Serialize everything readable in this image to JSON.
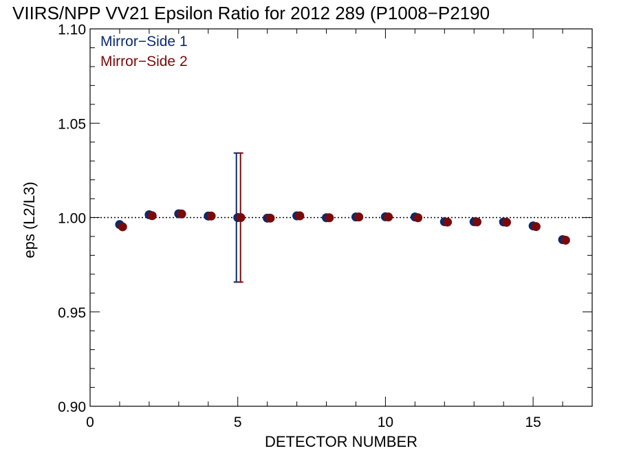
{
  "chart_data": {
    "type": "scatter",
    "title": "VIIRS/NPP VV21 Epsilon Ratio for 2012 289 (P1008−P2190",
    "xlabel": "DETECTOR NUMBER",
    "ylabel": "eps (L2/L3)",
    "xlim": [
      0,
      17
    ],
    "ylim": [
      0.9,
      1.1
    ],
    "x_ticks": [
      0,
      5,
      10,
      15
    ],
    "x_tick_labels": [
      "0",
      "5",
      "10",
      "15"
    ],
    "y_ticks": [
      0.9,
      0.95,
      1.0,
      1.05,
      1.1
    ],
    "y_tick_labels": [
      "0.90",
      "0.95",
      "1.00",
      "1.05",
      "1.10"
    ],
    "reference_line": 1.0,
    "grid": false,
    "legend_position": "top-left",
    "series": [
      {
        "name": "Mirror−Side 1",
        "color": "#0a2a6e",
        "x": [
          1,
          2,
          3,
          4,
          5,
          6,
          7,
          8,
          9,
          10,
          11,
          12,
          13,
          14,
          15,
          16
        ],
        "y": [
          0.9963,
          1.0015,
          1.002,
          1.0008,
          1.0,
          0.9997,
          1.0009,
          0.9999,
          1.0003,
          1.0004,
          1.0003,
          0.9978,
          0.9978,
          0.9977,
          0.9956,
          0.9883
        ],
        "error_bar": {
          "x": 5,
          "low": 0.9658,
          "high": 1.0342
        }
      },
      {
        "name": "Mirror−Side 2",
        "color": "#7a0a0a",
        "x": [
          1,
          2,
          3,
          4,
          5,
          6,
          7,
          8,
          9,
          10,
          11,
          12,
          13,
          14,
          15,
          16
        ],
        "y": [
          0.9951,
          1.001,
          1.0019,
          1.0008,
          1.0,
          0.9997,
          1.0009,
          0.9999,
          1.0003,
          1.0003,
          0.9999,
          0.9976,
          0.9977,
          0.9975,
          0.9952,
          0.988
        ],
        "error_bar": {
          "x": 5,
          "low": 0.9658,
          "high": 1.0342
        }
      }
    ]
  }
}
